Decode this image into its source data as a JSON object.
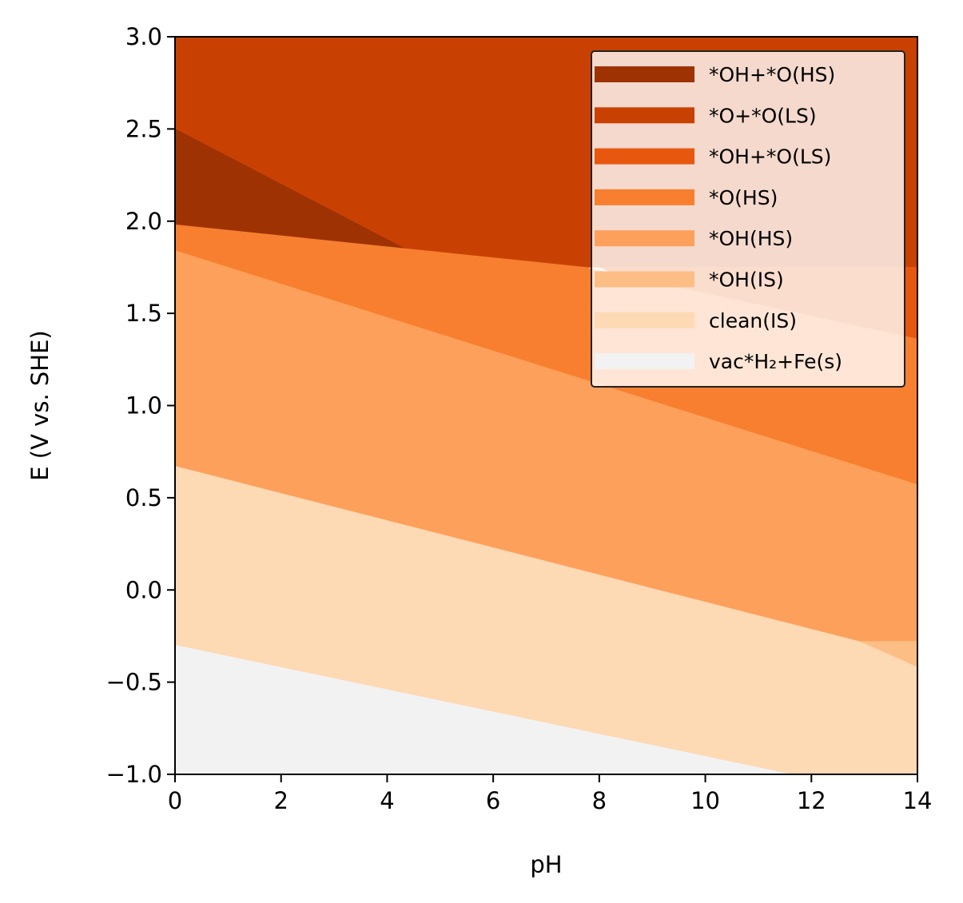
{
  "chart_data": {
    "type": "area",
    "xlabel": "pH",
    "ylabel": "E (V vs. SHE)",
    "xlim": [
      0,
      14
    ],
    "ylim": [
      -1.0,
      3.0
    ],
    "x_ticks": [
      0,
      2,
      4,
      6,
      8,
      10,
      12,
      14
    ],
    "y_ticks": [
      -1.0,
      -0.5,
      0.0,
      0.5,
      1.0,
      1.5,
      2.0,
      2.5,
      3.0
    ],
    "x_tick_labels": [
      "0",
      "2",
      "4",
      "6",
      "8",
      "10",
      "12",
      "14"
    ],
    "y_tick_labels": [
      "−1.0",
      "−0.5",
      "0.0",
      "0.5",
      "1.0",
      "1.5",
      "2.0",
      "2.5",
      "3.0"
    ],
    "grid": false,
    "legend_position": "top-right",
    "regions": [
      {
        "name": "*O+*O(LS)",
        "color": "#c94102",
        "polygon": [
          [
            0,
            3.0
          ],
          [
            14,
            3.0
          ],
          [
            14,
            1.36
          ],
          [
            8,
            1.75
          ],
          [
            5,
            1.75
          ],
          [
            0,
            2.5
          ]
        ]
      },
      {
        "name": "*OH+*O(HS)",
        "color": "#9e3203",
        "polygon": [
          [
            0,
            2.5
          ],
          [
            5,
            1.75
          ],
          [
            7.7,
            1.75
          ],
          [
            0,
            1.98
          ]
        ]
      },
      {
        "name": "*OH+*O(LS)",
        "color": "#e8570e",
        "polygon": [
          [
            5,
            1.75
          ],
          [
            14,
            1.75
          ],
          [
            14,
            1.1
          ],
          [
            8,
            1.75
          ]
        ]
      },
      {
        "name": "*O(HS)",
        "color": "#f77f2f",
        "polygon": [
          [
            0,
            1.98
          ],
          [
            7.7,
            1.75
          ],
          [
            14,
            1.36
          ],
          [
            14,
            0.57
          ],
          [
            0,
            1.84
          ]
        ]
      },
      {
        "name": "*OH(HS)",
        "color": "#fda05b",
        "polygon": [
          [
            0,
            1.84
          ],
          [
            14,
            0.57
          ],
          [
            14,
            -0.28
          ],
          [
            12.9,
            -0.28
          ],
          [
            0,
            0.67
          ]
        ]
      },
      {
        "name": "*OH(IS)",
        "color": "#fdbe86",
        "polygon": [
          [
            12.9,
            -0.28
          ],
          [
            14,
            -0.28
          ],
          [
            14,
            -0.42
          ]
        ]
      },
      {
        "name": "clean(IS)",
        "color": "#fdd9b4",
        "polygon": [
          [
            0,
            0.67
          ],
          [
            12.9,
            -0.28
          ],
          [
            14,
            -0.42
          ],
          [
            14,
            -1.0
          ],
          [
            11.6,
            -1.0
          ],
          [
            0,
            -0.3
          ]
        ]
      },
      {
        "name": "vac*H₂+Fe(s)",
        "color": "#f2f2f2",
        "polygon": [
          [
            0,
            -0.3
          ],
          [
            11.6,
            -1.0
          ],
          [
            0,
            -1.0
          ]
        ]
      }
    ],
    "legend": [
      {
        "label": "*OH+*O(HS)",
        "color": "#9e3203"
      },
      {
        "label": "*O+*O(LS)",
        "color": "#c94102"
      },
      {
        "label": "*OH+*O(LS)",
        "color": "#e8570e"
      },
      {
        "label": "*O(HS)",
        "color": "#f77f2f"
      },
      {
        "label": "*OH(HS)",
        "color": "#fda05b"
      },
      {
        "label": "*OH(IS)",
        "color": "#fdbe86"
      },
      {
        "label": "clean(IS)",
        "color": "#fdd9b4"
      },
      {
        "label": "vac*H₂+Fe(s)",
        "color": "#f2f2f2"
      }
    ]
  }
}
